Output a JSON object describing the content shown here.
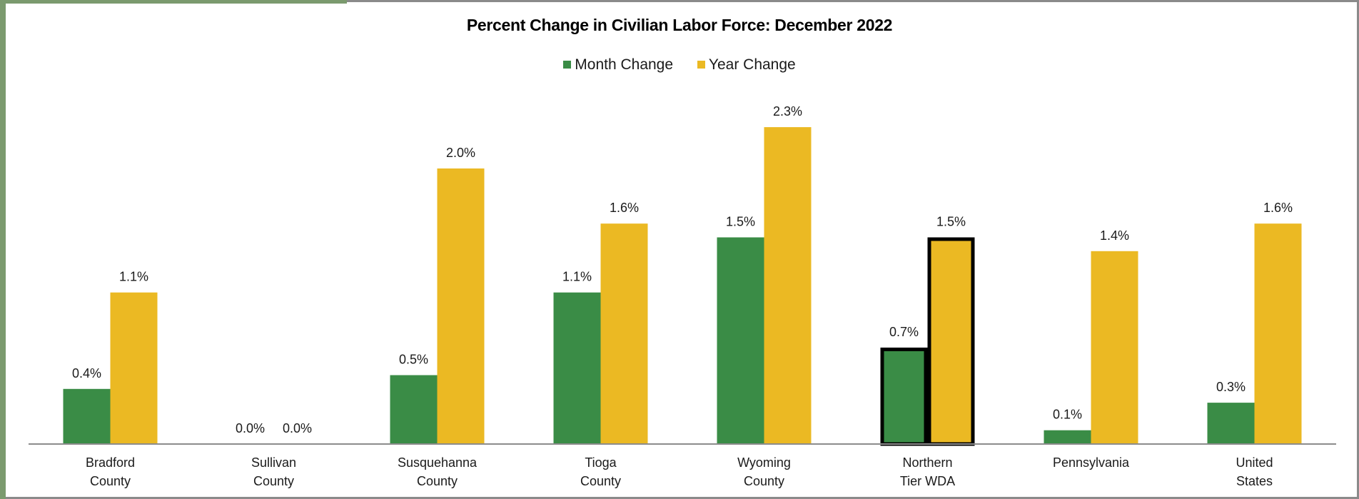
{
  "chart_data": {
    "type": "bar",
    "title": "Percent Change in Civilian Labor Force: December 2022",
    "categories": [
      [
        "Bradford",
        "County"
      ],
      [
        "Sullivan",
        "County"
      ],
      [
        "Susquehanna",
        "County"
      ],
      [
        "Tioga",
        "County"
      ],
      [
        "Wyoming",
        "County"
      ],
      [
        "Northern",
        "Tier WDA"
      ],
      [
        "Pennsylvania"
      ],
      [
        "United",
        "States"
      ]
    ],
    "series": [
      {
        "name": "Month Change",
        "color": "#3a8c46",
        "values": [
          0.4,
          0.0,
          0.5,
          1.1,
          1.5,
          0.7,
          0.1,
          0.3
        ],
        "labels": [
          "0.4%",
          "0.0%",
          "0.5%",
          "1.1%",
          "1.5%",
          "0.7%",
          "0.1%",
          "0.3%"
        ]
      },
      {
        "name": "Year Change",
        "color": "#ebb923",
        "values": [
          1.1,
          0.0,
          2.0,
          1.6,
          2.3,
          1.5,
          1.4,
          1.6
        ],
        "labels": [
          "1.1%",
          "0.0%",
          "2.0%",
          "1.6%",
          "2.3%",
          "1.5%",
          "1.4%",
          "1.6%"
        ]
      }
    ],
    "highlighted_category": 5,
    "ylim": [
      0,
      2.5
    ],
    "grid": false,
    "legend_position": "top-center"
  }
}
